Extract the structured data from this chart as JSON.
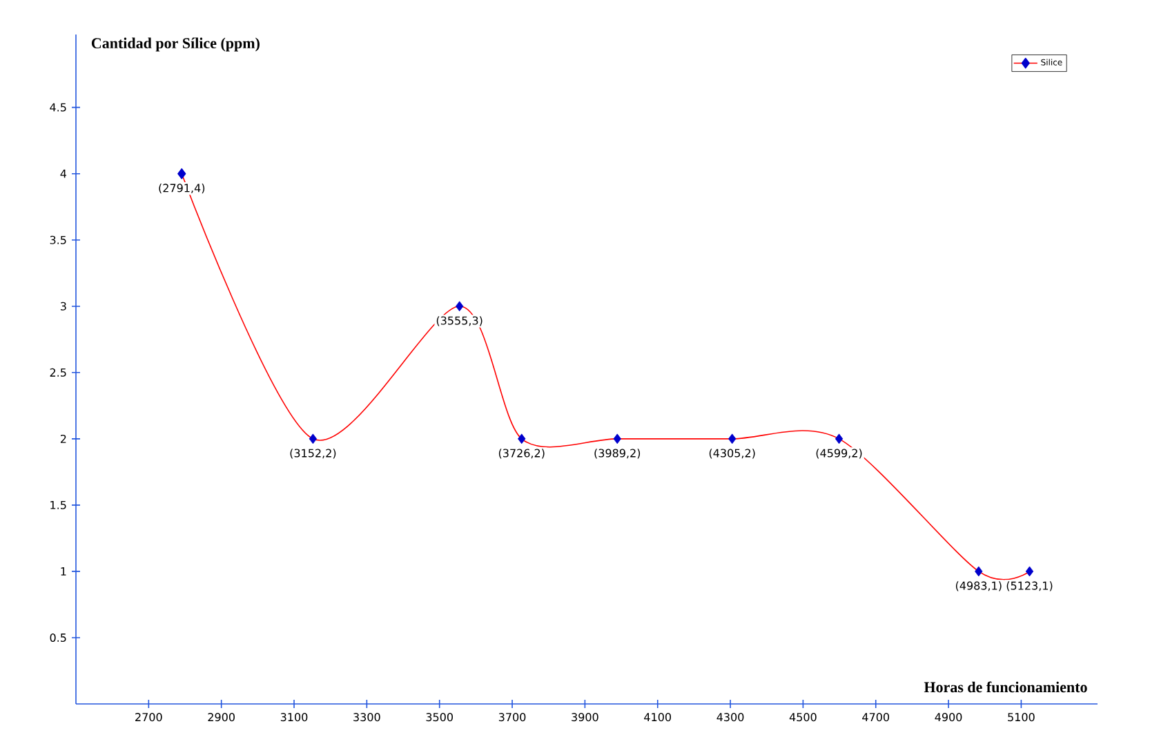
{
  "chart_data": {
    "type": "line",
    "xlabel": "Horas de funcionamiento",
    "ylabel": "Cantidad por Sílice (ppm)",
    "x": [
      2791,
      3152,
      3555,
      3726,
      3989,
      4305,
      4599,
      4983,
      5123
    ],
    "series": [
      {
        "name": "Silice",
        "color": "#ff0000",
        "colors": [
          "#0000cc",
          "#0000cc",
          "#0000cc",
          "#0000cc",
          "#0000cc",
          "#0000cc",
          "#0000cc",
          "#0000cc",
          "#0000cc"
        ],
        "values": [
          4,
          2,
          3,
          2,
          2,
          2,
          2,
          1,
          1
        ]
      }
    ],
    "annotations": [
      {
        "text": "(2791,4)",
        "x": 2791,
        "y": 4
      },
      {
        "text": "(3152,2)",
        "x": 3152,
        "y": 2
      },
      {
        "text": "(3555,3)",
        "x": 3555,
        "y": 3
      },
      {
        "text": "(3726,2)",
        "x": 3726,
        "y": 2
      },
      {
        "text": "(3989,2)",
        "x": 3989,
        "y": 2
      },
      {
        "text": "(4305,2)",
        "x": 4305,
        "y": 2
      },
      {
        "text": "(4599,2)",
        "x": 4599,
        "y": 2
      },
      {
        "text": "(4983,1)",
        "x": 4983,
        "y": 1
      },
      {
        "text": "(5123,1)",
        "x": 5123,
        "y": 1
      }
    ],
    "xlim": [
      2500,
      5310
    ],
    "ylim": [
      0,
      5.05
    ],
    "xticks": [
      2700,
      2900,
      3100,
      3300,
      3500,
      3700,
      3900,
      4100,
      4300,
      4500,
      4700,
      4900,
      5100
    ],
    "yticks": [
      0.5,
      1,
      1.5,
      2,
      2.5,
      3,
      3.5,
      4,
      4.5
    ],
    "marker": "diamond",
    "line_style": "solid",
    "legend": "top right",
    "grid": false
  }
}
